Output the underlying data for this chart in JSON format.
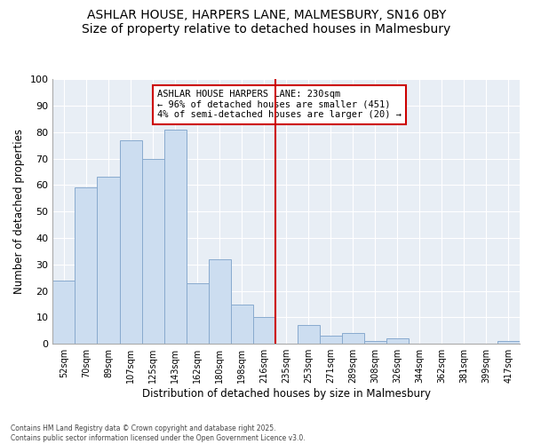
{
  "title": "ASHLAR HOUSE, HARPERS LANE, MALMESBURY, SN16 0BY",
  "subtitle": "Size of property relative to detached houses in Malmesbury",
  "xlabel": "Distribution of detached houses by size in Malmesbury",
  "ylabel": "Number of detached properties",
  "bar_color": "#ccddf0",
  "bar_edge_color": "#88aace",
  "categories": [
    "52sqm",
    "70sqm",
    "89sqm",
    "107sqm",
    "125sqm",
    "143sqm",
    "162sqm",
    "180sqm",
    "198sqm",
    "216sqm",
    "235sqm",
    "253sqm",
    "271sqm",
    "289sqm",
    "308sqm",
    "326sqm",
    "344sqm",
    "362sqm",
    "381sqm",
    "399sqm",
    "417sqm"
  ],
  "values": [
    24,
    59,
    63,
    77,
    70,
    81,
    23,
    32,
    15,
    10,
    0,
    7,
    3,
    4,
    1,
    2,
    0,
    0,
    0,
    0,
    1
  ],
  "vline_color": "#cc0000",
  "annotation_title": "ASHLAR HOUSE HARPERS LANE: 230sqm",
  "annotation_line1": "← 96% of detached houses are smaller (451)",
  "annotation_line2": "4% of semi-detached houses are larger (20) →",
  "ylim": [
    0,
    100
  ],
  "yticks": [
    0,
    10,
    20,
    30,
    40,
    50,
    60,
    70,
    80,
    90,
    100
  ],
  "footnote1": "Contains HM Land Registry data © Crown copyright and database right 2025.",
  "footnote2": "Contains public sector information licensed under the Open Government Licence v3.0.",
  "bg_color": "#e8eef5",
  "grid_color": "#ffffff",
  "title_fontsize": 10,
  "subtitle_fontsize": 9
}
